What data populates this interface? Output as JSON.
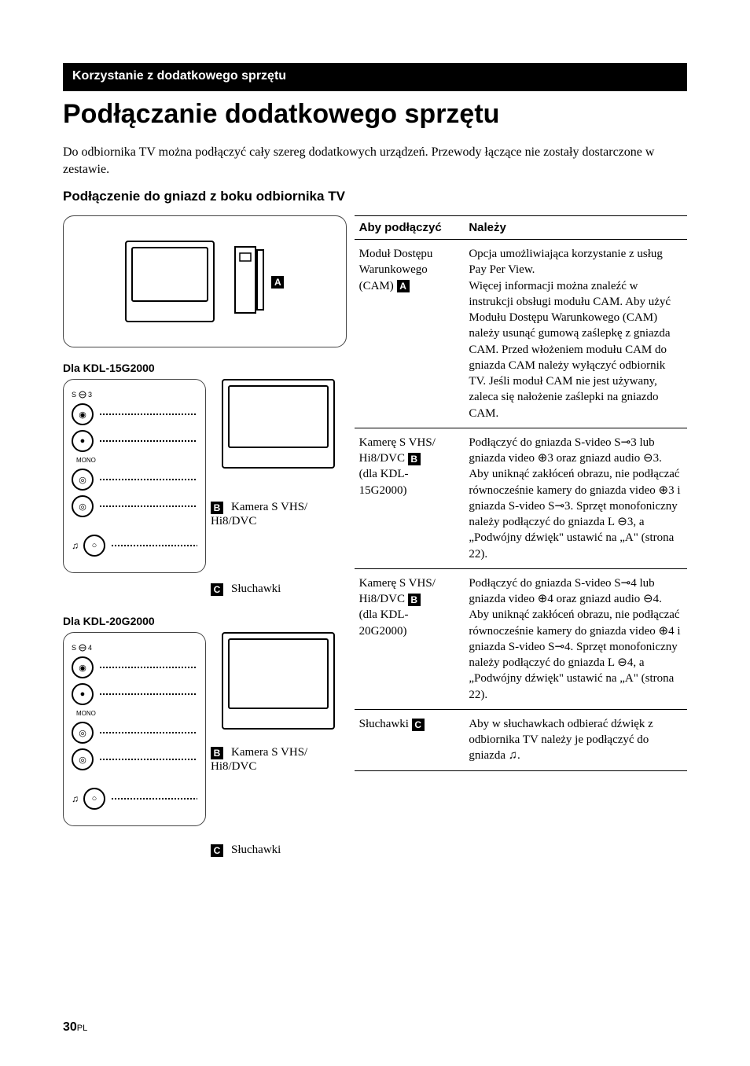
{
  "section_bar": "Korzystanie z dodatkowego sprzętu",
  "main_title": "Podłączanie dodatkowego sprzętu",
  "intro": "Do odbiornika TV można podłączyć cały szereg dodatkowych urządzeń. Przewody łączące nie zostały dostarczone w zestawie.",
  "sub_title": "Podłączenie do gniazd z boku odbiornika TV",
  "left": {
    "model1": "Dla KDL-15G2000",
    "model2": "Dla KDL-20G2000",
    "tagA": "A",
    "tagB": "B",
    "tagC": "C",
    "camera_label1": "Kamera S VHS/\nHi8/DVC",
    "camera_label2": "Kamera S VHS/\nHi8/DVC",
    "headphones": "Słuchawki",
    "s_in_3": "S    3",
    "s_in_4": "S    4",
    "mono": "MONO"
  },
  "table": {
    "col1": "Aby podłączyć",
    "col2": "Należy",
    "rows": [
      {
        "left_lines": [
          "Moduł Dostępu",
          "Warunkowego",
          "(CAM) "
        ],
        "left_tag": "A",
        "right": "Opcja umożliwiająca korzystanie z usług Pay Per View.\nWięcej informacji można znaleźć w instrukcji obsługi modułu CAM. Aby użyć Modułu Dostępu Warunkowego (CAM) należy usunąć gumową zaślepkę z gniazda CAM. Przed włożeniem modułu CAM do gniazda CAM należy wyłączyć odbiornik TV. Jeśli moduł CAM nie jest używany, zaleca się nałożenie zaślepki na gniazdo CAM."
      },
      {
        "left_lines": [
          "Kamerę S VHS/",
          "Hi8/DVC ",
          "(dla KDL-",
          "15G2000)"
        ],
        "left_tag": "B",
        "right": "Podłączyć do gniazda S-video S⊸3 lub gniazda video ⊕3 oraz gniazd audio ⊖3. Aby uniknąć zakłóceń obrazu, nie podłączać równocześnie kamery do gniazda video ⊕3 i gniazda S-video S⊸3. Sprzęt monofoniczny należy podłączyć do gniazda L ⊖3, a „Podwójny dźwięk\" ustawić na „A\" (strona 22)."
      },
      {
        "left_lines": [
          "Kamerę S VHS/",
          "Hi8/DVC ",
          "(dla KDL-",
          "20G2000)"
        ],
        "left_tag": "B",
        "right": "Podłączyć do gniazda S-video S⊸4 lub gniazda video ⊕4 oraz gniazd audio ⊖4. Aby uniknąć zakłóceń obrazu, nie podłączać równocześnie kamery do gniazda video ⊕4 i gniazda S-video S⊸4. Sprzęt monofoniczny należy podłączyć do gniazda L ⊖4, a „Podwójny dźwięk\" ustawić na „A\" (strona 22)."
      },
      {
        "left_lines": [
          "Słuchawki "
        ],
        "left_tag": "C",
        "right": "Aby w słuchawkach odbierać dźwięk z odbiornika TV należy je podłączyć do gniazda ♫."
      }
    ]
  },
  "page_num": "30",
  "page_suffix": "PL",
  "colors": {
    "background": "#ffffff",
    "text": "#000000",
    "bar_bg": "#000000",
    "bar_text": "#ffffff",
    "table_border": "#000000"
  },
  "typography": {
    "title_family": "Arial",
    "body_family": "Times New Roman",
    "title_size_pt": 26,
    "section_bar_size_pt": 12,
    "body_size_pt": 11
  }
}
